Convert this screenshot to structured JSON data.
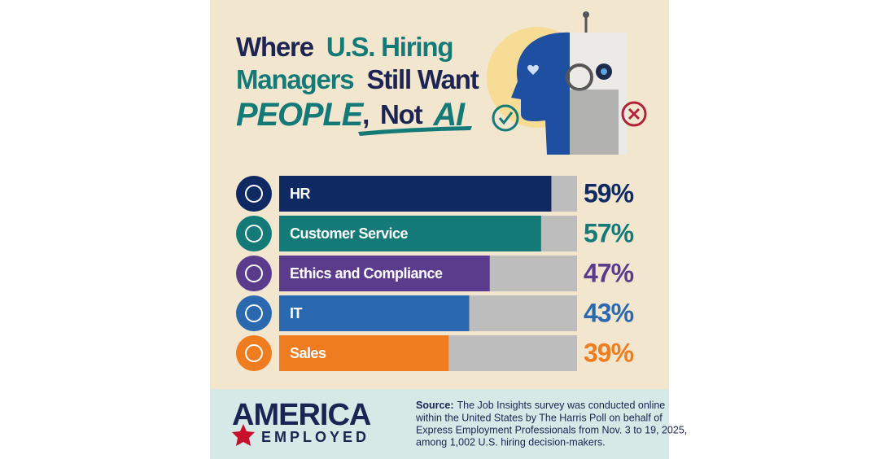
{
  "chart_data": {
    "type": "bar",
    "title_parts": [
      "Where",
      "U.S. Hiring",
      "Managers",
      "Still Want",
      "PEOPLE",
      ",",
      "Not",
      "AI"
    ],
    "categories": [
      "HR",
      "Customer Service",
      "Ethics and Compliance",
      "IT",
      "Sales"
    ],
    "values": [
      59,
      57,
      47,
      43,
      39
    ],
    "value_labels": [
      "59%",
      "57%",
      "47%",
      "43%",
      "39%"
    ],
    "colors": [
      "#0f2a63",
      "#147a78",
      "#5b3c8c",
      "#2a69b0",
      "#ef7c1f"
    ],
    "track_color": "#bdbdbd",
    "xlim": [
      6,
      64
    ]
  },
  "logo": {
    "top": "AMERICA",
    "bottom": "EMPLOYED"
  },
  "source": {
    "label": "Source:",
    "lines": [
      "The Job Insights survey was conducted online",
      "within the United States by The Harris Poll on behalf of",
      "Express Employment Professionals from Nov. 3 to 19, 2025,",
      "among 1,002 U.S. hiring decision-makers."
    ]
  }
}
